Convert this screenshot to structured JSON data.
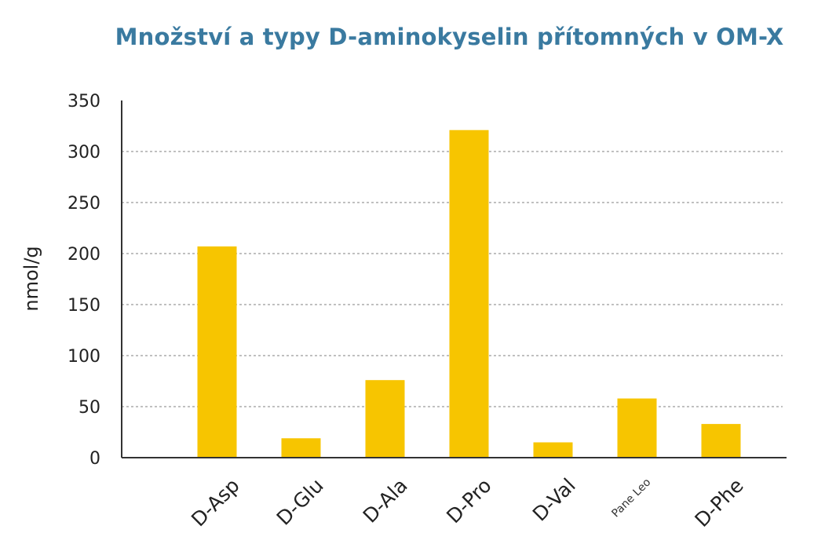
{
  "chart_data": {
    "type": "bar",
    "title": "Množství a typy D-aminokyselin přítomných v OM-X",
    "xlabel": "",
    "ylabel": "nmol/g",
    "ylim": [
      0,
      350
    ],
    "yticks": [
      0,
      50,
      100,
      150,
      200,
      250,
      300,
      350
    ],
    "grid": true,
    "categories": [
      "D-Asp",
      "D-Glu",
      "D-Ala",
      "D-Pro",
      "D-Val",
      "Pane Leo",
      "D-Phe"
    ],
    "values": [
      207,
      19,
      76,
      321,
      15,
      58,
      33
    ],
    "bar_color": "#f7c500",
    "grid_color": "#9a9a9a",
    "axis_color": "#333333"
  }
}
